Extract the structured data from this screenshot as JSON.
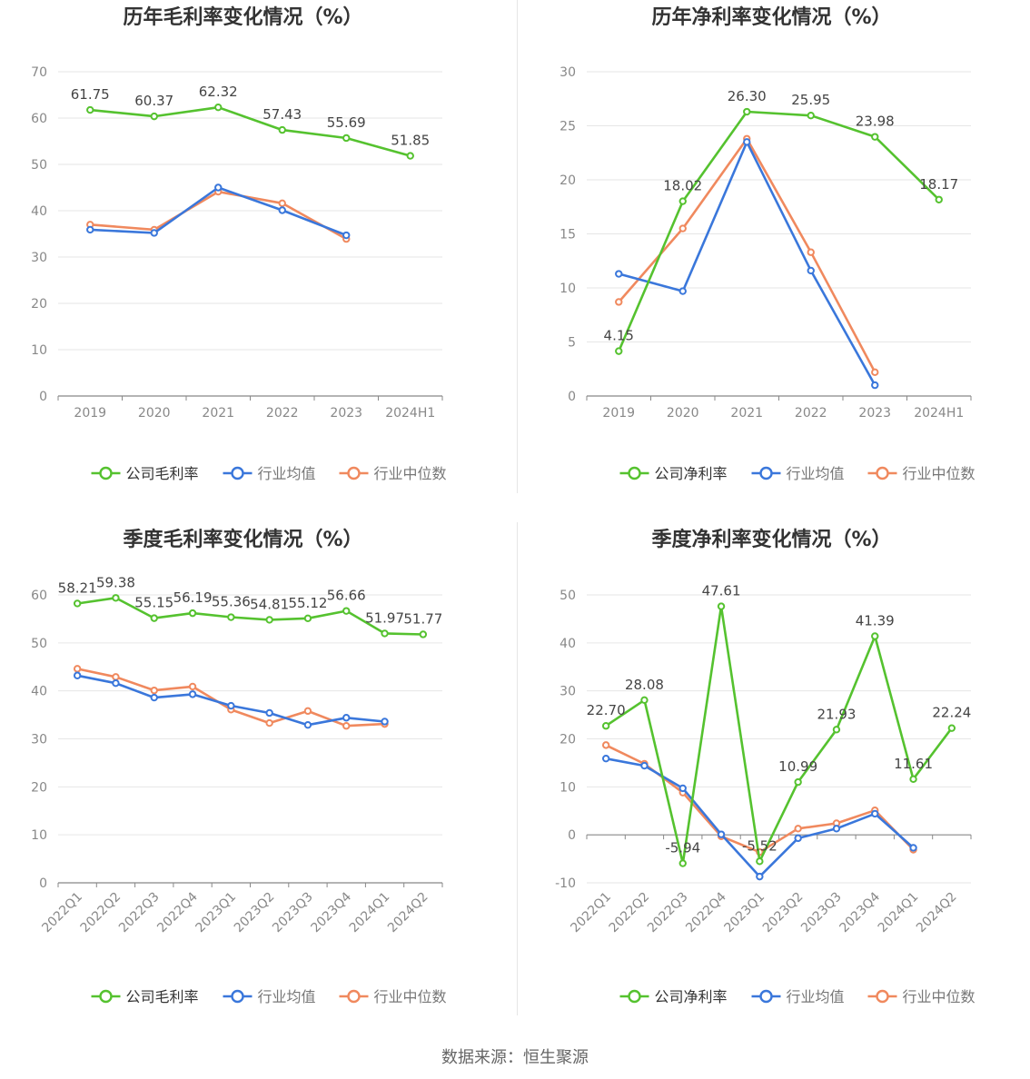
{
  "source": "数据来源：恒生聚源",
  "colors": {
    "company": "#55c22f",
    "avg": "#3a77db",
    "median": "#f0895e",
    "axis": "#888888",
    "grid": "#e6e6e6",
    "title": "#333333",
    "label": "#444444"
  },
  "chart_data": [
    {
      "type": "line",
      "title": "历年毛利率变化情况（%）",
      "categories": [
        "2019",
        "2020",
        "2021",
        "2022",
        "2023",
        "2024H1"
      ],
      "ylim": [
        0,
        70
      ],
      "yticks": [
        0,
        10,
        20,
        30,
        40,
        50,
        60,
        70
      ],
      "legend": "bottom",
      "series": [
        {
          "name": "公司毛利率",
          "values": [
            61.75,
            60.37,
            62.32,
            57.43,
            55.69,
            51.85
          ],
          "labels": [
            "61.75",
            "60.37",
            "62.32",
            "57.43",
            "55.69",
            "51.85"
          ]
        },
        {
          "name": "行业均值",
          "values": [
            35.9,
            35.2,
            45.0,
            40.1,
            34.7,
            null
          ]
        },
        {
          "name": "行业中位数",
          "values": [
            37.0,
            35.9,
            44.1,
            41.6,
            33.9,
            null
          ]
        }
      ]
    },
    {
      "type": "line",
      "title": "历年净利率变化情况（%）",
      "categories": [
        "2019",
        "2020",
        "2021",
        "2022",
        "2023",
        "2024H1"
      ],
      "ylim": [
        0,
        30
      ],
      "yticks": [
        0,
        5,
        10,
        15,
        20,
        25,
        30
      ],
      "legend": "bottom",
      "series": [
        {
          "name": "公司净利率",
          "values": [
            4.15,
            18.02,
            26.3,
            25.95,
            23.98,
            18.17
          ],
          "labels": [
            "4.15",
            "18.02",
            "26.30",
            "25.95",
            "23.98",
            "18.17"
          ]
        },
        {
          "name": "行业均值",
          "values": [
            11.3,
            9.7,
            23.5,
            11.6,
            1.0,
            null
          ]
        },
        {
          "name": "行业中位数",
          "values": [
            8.7,
            15.5,
            23.8,
            13.3,
            2.2,
            null
          ]
        }
      ]
    },
    {
      "type": "line",
      "title": "季度毛利率变化情况（%）",
      "categories": [
        "2022Q1",
        "2022Q2",
        "2022Q3",
        "2022Q4",
        "2023Q1",
        "2023Q2",
        "2023Q3",
        "2023Q4",
        "2024Q1",
        "2024Q2"
      ],
      "ylim": [
        0,
        60
      ],
      "yticks": [
        0,
        10,
        20,
        30,
        40,
        50,
        60
      ],
      "legend": "bottom",
      "series": [
        {
          "name": "公司毛利率",
          "values": [
            58.21,
            59.38,
            55.15,
            56.19,
            55.36,
            54.81,
            55.12,
            56.66,
            51.97,
            51.77
          ],
          "labels": [
            "58.21",
            "59.38",
            "55.15",
            "56.19",
            "55.36",
            "54.81",
            "55.12",
            "56.66",
            "51.97",
            "51.77"
          ]
        },
        {
          "name": "行业均值",
          "values": [
            43.2,
            41.6,
            38.6,
            39.3,
            36.9,
            35.4,
            32.9,
            34.4,
            33.6,
            null
          ]
        },
        {
          "name": "行业中位数",
          "values": [
            44.6,
            42.9,
            40.1,
            40.9,
            36.1,
            33.3,
            35.8,
            32.7,
            33.1,
            null
          ]
        }
      ]
    },
    {
      "type": "line",
      "title": "季度净利率变化情况（%）",
      "categories": [
        "2022Q1",
        "2022Q2",
        "2022Q3",
        "2022Q4",
        "2023Q1",
        "2023Q2",
        "2023Q3",
        "2023Q4",
        "2024Q1",
        "2024Q2"
      ],
      "ylim": [
        -10,
        50
      ],
      "yticks": [
        -10,
        0,
        10,
        20,
        30,
        40,
        50
      ],
      "legend": "bottom",
      "series": [
        {
          "name": "公司净利率",
          "values": [
            22.7,
            28.08,
            -5.94,
            47.61,
            -5.52,
            10.99,
            21.93,
            41.39,
            11.61,
            22.24
          ],
          "labels": [
            "22.70",
            "28.08",
            "-5.94",
            "47.61",
            "-5.52",
            "10.99",
            "21.93",
            "41.39",
            "11.61",
            "22.24"
          ]
        },
        {
          "name": "行业均值",
          "values": [
            15.9,
            14.4,
            9.7,
            0.1,
            -8.7,
            -0.7,
            1.3,
            4.4,
            -2.7,
            null
          ]
        },
        {
          "name": "行业中位数",
          "values": [
            18.7,
            14.8,
            8.8,
            -0.3,
            -3.6,
            1.3,
            2.4,
            5.1,
            -3.1,
            null
          ]
        }
      ]
    }
  ]
}
